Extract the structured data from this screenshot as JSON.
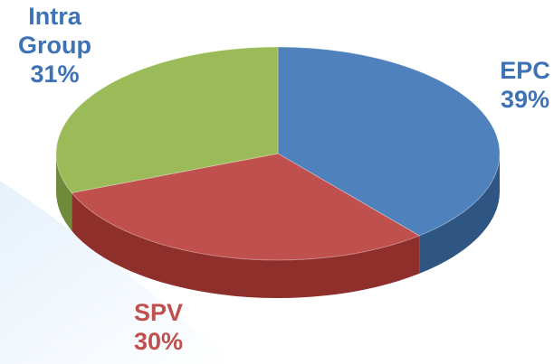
{
  "chart_data": {
    "type": "pie",
    "categories": [
      "EPC",
      "SPV",
      "Intra Group"
    ],
    "values": [
      39,
      30,
      31
    ],
    "value_labels": [
      "39%",
      "30%",
      "31%"
    ],
    "colors": [
      "#4f81bd",
      "#c0504d",
      "#9bbb59"
    ],
    "side_colors": [
      "#2f5583",
      "#8f2f2c",
      "#6e8a3a"
    ]
  }
}
